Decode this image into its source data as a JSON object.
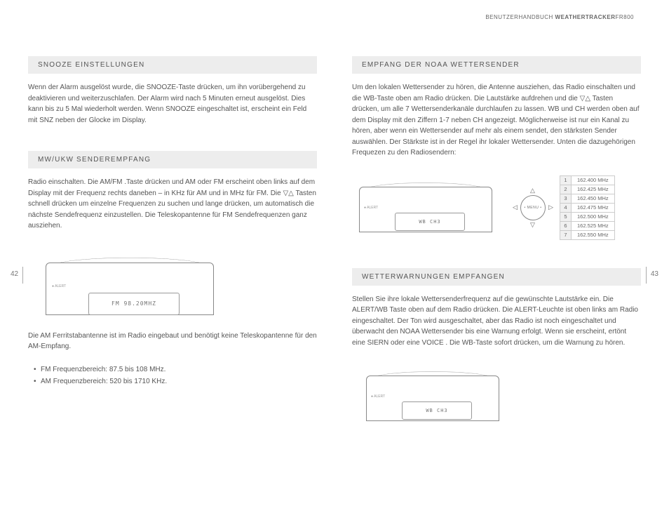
{
  "header": {
    "prefix": "BENUTZERHANDBUCH ",
    "product": "WEATHERTRACKER",
    "model": "FR800"
  },
  "page_left_num": "42",
  "page_right_num": "43",
  "left": {
    "s1_heading": "SNOOZE EINSTELLUNGEN",
    "s1_body": "Wenn der Alarm ausgelöst wurde, die SNOOZE-Taste drücken, um ihn vorübergehend zu deaktivieren und weiterzuschlafen. Der Alarm wird nach 5 Minuten erneut ausgelöst. Dies kann bis zu 5 Mal wiederholt werden. Wenn SNOOZE eingeschaltet ist, erscheint ein Feld mit SNZ neben der Glocke im Display.",
    "s2_heading": "MW/UKW SENDEREMPFANG",
    "s2_body": "Radio einschalten. Die AM/FM .Taste drücken und AM oder FM erscheint oben links auf dem Display mit der Frequenz rechts daneben – in KHz für AM und in MHz für FM. Die ▽△ Tasten schnell drücken um einzelne Frequenzen zu suchen und lange drücken, um automatisch die nächste Sendefrequenz einzustellen. Die Teleskopantenne für FM Sendefrequenzen ganz ausziehen.",
    "fm_display": "FM  98.20MHZ",
    "s2_note": "Die AM Ferritstabantenne ist im Radio eingebaut und benötigt keine Teleskopantenne für den AM-Empfang.",
    "bullets": [
      "FM Frequenzbereich: 87.5 bis 108 MHz.",
      "AM Frequenzbereich: 520 bis 1710 KHz."
    ]
  },
  "right": {
    "s1_heading": "EMPFANG DER NOAA WETTERSENDER",
    "s1_body": "Um den lokalen Wettersender zu hören, die Antenne ausziehen, das Radio einschalten und die WB-Taste oben am Radio drücken. Die Lautstärke aufdrehen und die ▽△ Tasten drücken, um alle 7 Wettersenderkanäle durchlaufen zu lassen. WB und CH werden oben auf dem Display mit den Ziffern 1-7 neben CH angezeigt. Möglicherweise ist nur ein Kanal zu hören, aber wenn ein Wettersender auf mehr als einem sendet, den stärksten Sender auswählen. Der Stärkste ist in der Regel ihr lokaler Wettersender. Unten die dazugehörigen Frequezen zu den Radiosendern:",
    "wb_display": "WB   CH3",
    "menu_label": "• MENU •",
    "freq": [
      [
        "1",
        "162.400 MHz"
      ],
      [
        "2",
        "162.425 MHz"
      ],
      [
        "3",
        "162.450 MHz"
      ],
      [
        "4",
        "162.475 MHz"
      ],
      [
        "5",
        "162.500 MHz"
      ],
      [
        "6",
        "162.525 MHz"
      ],
      [
        "7",
        "162.550 MHz"
      ]
    ],
    "s2_heading": "WETTERWARNUNGEN EMPFANGEN",
    "s2_body": "Stellen Sie ihre lokale Wettersenderfrequenz auf die gewünschte Lautstärke ein. Die ALERT/WB Taste oben auf dem Radio drücken. Die ALERT-Leuchte ist oben links am Radio eingeschaltet. Der Ton wird ausgeschaltet, aber das Radio ist noch eingeschaltet und überwacht den NOAA Wettersender bis eine Warnung erfolgt. Wenn sie erscheint, ertönt eine SIERN oder eine VOICE . Die WB-Taste sofort drücken, um die Warnung zu hören."
  }
}
